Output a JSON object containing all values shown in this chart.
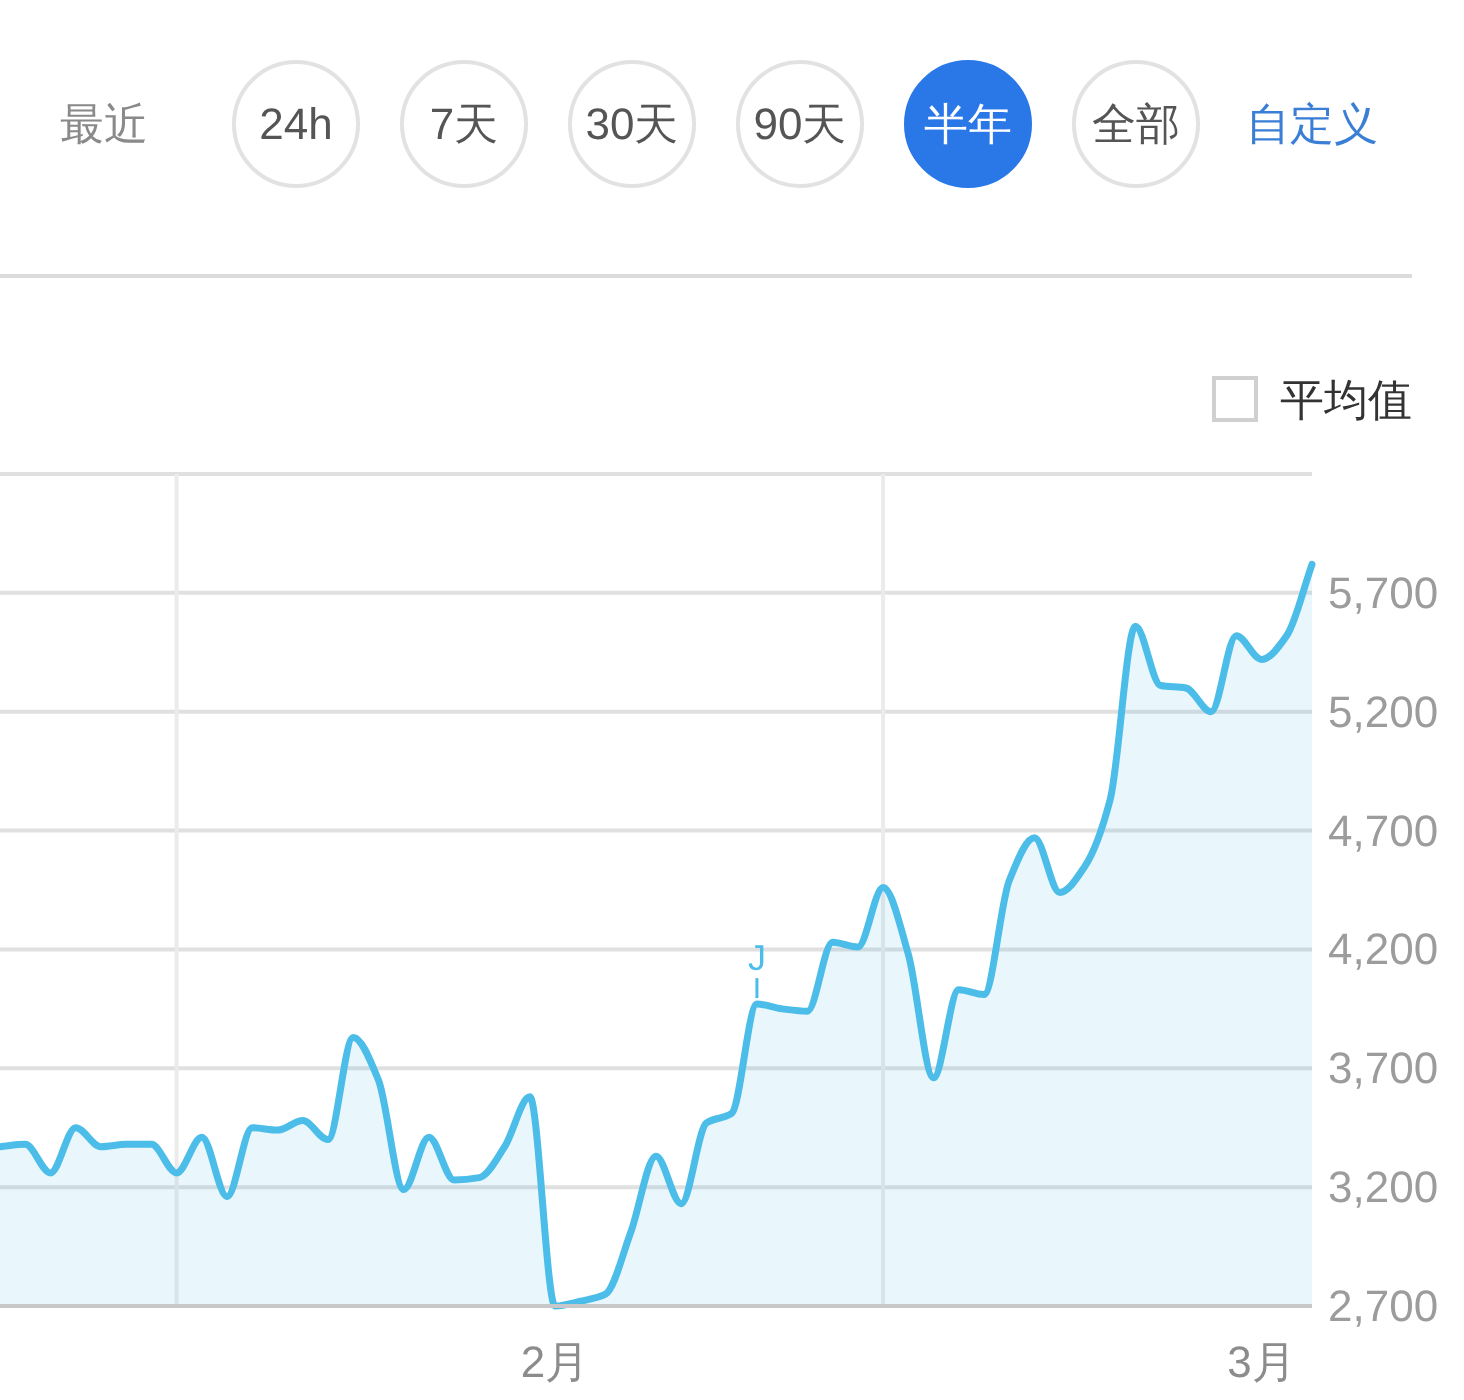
{
  "chart_data": {
    "type": "area",
    "annotations": [
      "最近",
      "24h",
      "7天",
      "30天",
      "90天",
      "半年",
      "全部",
      "自定义",
      "平均值",
      {
        "text": "J",
        "x": "--02-09",
        "y": 3970
      }
    ],
    "x": [
      "--01-10",
      "--01-11",
      "--01-12",
      "--01-13",
      "--01-14",
      "--01-15",
      "--01-16",
      "--01-17",
      "--01-18",
      "--01-19",
      "--01-20",
      "--01-21",
      "--01-22",
      "--01-23",
      "--01-24",
      "--01-25",
      "--01-26",
      "--01-27",
      "--01-28",
      "--01-29",
      "--01-30",
      "--01-31",
      "--02-01",
      "--02-02",
      "--02-03",
      "--02-04",
      "--02-05",
      "--02-06",
      "--02-07",
      "--02-08",
      "--02-09",
      "--02-10",
      "--02-11",
      "--02-12",
      "--02-13",
      "--02-14",
      "--02-15",
      "--02-16",
      "--02-17",
      "--02-18",
      "--02-19",
      "--02-20",
      "--02-21",
      "--02-22",
      "--02-23",
      "--02-24",
      "--02-25",
      "--02-26",
      "--02-27",
      "--02-28",
      "--03-01",
      "--03-02",
      "--03-03"
    ],
    "series": [
      {
        "color": "#4bbde8",
        "values": [
          3370,
          3380,
          3260,
          3450,
          3370,
          3380,
          3380,
          3260,
          3410,
          3160,
          3450,
          3440,
          3480,
          3400,
          3830,
          3650,
          3190,
          3410,
          3230,
          3240,
          3370,
          3580,
          2700,
          2720,
          2750,
          3010,
          3330,
          3130,
          3470,
          3510,
          3970,
          3950,
          3940,
          4230,
          4210,
          4460,
          4180,
          3660,
          4030,
          4010,
          4490,
          4670,
          4440,
          4550,
          4830,
          5560,
          5310,
          5300,
          5200,
          5520,
          5420,
          5520,
          5820
        ]
      }
    ],
    "xlim": [
      "--01-10",
      "--03-03"
    ],
    "ylim": [
      2700,
      6200
    ],
    "xticks": [
      {
        "value": "--02-01",
        "label": "2月"
      },
      {
        "value": "--03-01",
        "label": "3月"
      }
    ],
    "yticks": [
      {
        "value": 2700,
        "label": "2,700"
      },
      {
        "value": 3200,
        "label": "3,200"
      },
      {
        "value": 3700,
        "label": "3,700"
      },
      {
        "value": 4200,
        "label": "4,200"
      },
      {
        "value": 4700,
        "label": "4,700"
      },
      {
        "value": 5200,
        "label": "5,200"
      },
      {
        "value": 5700,
        "label": "5,700"
      },
      {
        "value": 6200,
        "label": null
      }
    ],
    "grid": "y",
    "ref_lines": [
      {
        "axis": "x",
        "value": "--01-17",
        "color": "#ebebeb"
      },
      {
        "axis": "x",
        "value": "--02-14",
        "color": "#ebebeb"
      }
    ]
  }
}
